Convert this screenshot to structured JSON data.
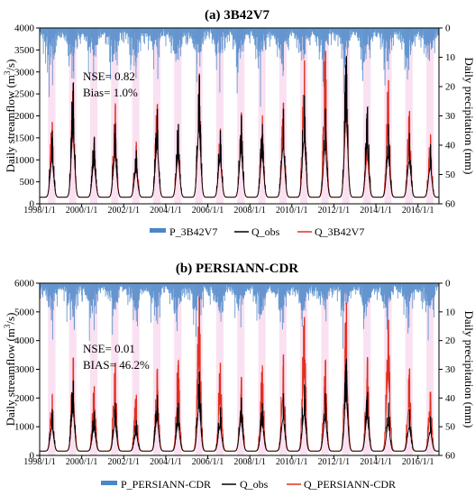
{
  "colors": {
    "precip": "#4a86c8",
    "q_obs": "#000000",
    "q_sim": "#e0301e",
    "band": "#f5c8e6"
  },
  "chart_data": [
    {
      "type": "line",
      "title": "(a) 3B42V7",
      "ylabel_left": "Daily streamflow (m³/s)",
      "ylabel_left_text": "Daily streamflow (m",
      "ylabel_left_sup": "3",
      "ylabel_left_tail": "/s)",
      "ylabel_right": "Daily precipitation (mm)",
      "ylim_left": [
        0,
        4000
      ],
      "yticks_left": [
        "0",
        "500",
        "1000",
        "1500",
        "2000",
        "2500",
        "3000",
        "3500",
        "4000"
      ],
      "ylim_right": [
        0,
        60
      ],
      "yticks_right": [
        "0",
        "10",
        "20",
        "30",
        "40",
        "50",
        "60"
      ],
      "xticks": [
        "1998/1/1",
        "2000/1/1",
        "2002/1/1",
        "2004/1/1",
        "2006/1/1",
        "2008/1/1",
        "2010/1/1",
        "2012/1/1",
        "2014/1/1",
        "2016/1/1"
      ],
      "xrange_years": [
        1998.0,
        2017.0
      ],
      "annotation_line1": "NSE= 0.82",
      "annotation_line2": "Bias= 1.0%",
      "legend": [
        "P_3B42V7",
        "Q_obs",
        "Q_3B42V7"
      ],
      "legend_location": "bottom",
      "baseflow": 150,
      "annual_peaks": [
        {
          "year": 1998,
          "obs": 1650,
          "sim": 1850
        },
        {
          "year": 1999,
          "obs": 2750,
          "sim": 2600
        },
        {
          "year": 2000,
          "obs": 1500,
          "sim": 1500
        },
        {
          "year": 2001,
          "obs": 1800,
          "sim": 2250
        },
        {
          "year": 2002,
          "obs": 1200,
          "sim": 1400
        },
        {
          "year": 2003,
          "obs": 2150,
          "sim": 2250
        },
        {
          "year": 2004,
          "obs": 1800,
          "sim": 1700
        },
        {
          "year": 2005,
          "obs": 2900,
          "sim": 2950
        },
        {
          "year": 2006,
          "obs": 1650,
          "sim": 1700
        },
        {
          "year": 2007,
          "obs": 2000,
          "sim": 2050
        },
        {
          "year": 2008,
          "obs": 1800,
          "sim": 2000
        },
        {
          "year": 2009,
          "obs": 2150,
          "sim": 2300
        },
        {
          "year": 2010,
          "obs": 2450,
          "sim": 3250
        },
        {
          "year": 2011,
          "obs": 2150,
          "sim": 3450
        },
        {
          "year": 2012,
          "obs": 3350,
          "sim": 3300
        },
        {
          "year": 2013,
          "obs": 2200,
          "sim": 1700
        },
        {
          "year": 2014,
          "obs": 1800,
          "sim": 2800
        },
        {
          "year": 2015,
          "obs": 1600,
          "sim": 2100
        },
        {
          "year": 2016,
          "obs": 1350,
          "sim": 1550
        }
      ]
    },
    {
      "type": "line",
      "title": "(b) PERSIANN-CDR",
      "ylabel_left": "Daily streamflow (m³/s)",
      "ylabel_left_text": "Daily streamflow (m",
      "ylabel_left_sup": "3",
      "ylabel_left_tail": "/s)",
      "ylabel_right": "Daily precipitation (mm)",
      "ylim_left": [
        0,
        6000
      ],
      "yticks_left": [
        "0",
        "1000",
        "2000",
        "3000",
        "4000",
        "5000",
        "6000"
      ],
      "ylim_right": [
        0,
        60
      ],
      "yticks_right": [
        "0",
        "10",
        "20",
        "30",
        "40",
        "50",
        "60"
      ],
      "xticks": [
        "1998/1/1",
        "2000/1/1",
        "2002/1/1",
        "2004/1/1",
        "2006/1/1",
        "2008/1/1",
        "2010/1/1",
        "2012/1/1",
        "2014/1/1",
        "2016/1/1"
      ],
      "xrange_years": [
        1998.0,
        2017.0
      ],
      "annotation_line1": "NSE= 0.01",
      "annotation_line2": "BIAS= 46.2%",
      "legend": [
        "P_PERSIANN-CDR",
        "Q_obs",
        "Q_PERSIANN-CDR"
      ],
      "legend_location": "bottom",
      "baseflow": 150,
      "annual_peaks": [
        {
          "year": 1998,
          "obs": 1600,
          "sim": 2100
        },
        {
          "year": 1999,
          "obs": 2600,
          "sim": 3400
        },
        {
          "year": 2000,
          "obs": 1500,
          "sim": 2400
        },
        {
          "year": 2001,
          "obs": 1800,
          "sim": 3200
        },
        {
          "year": 2002,
          "obs": 1200,
          "sim": 2100
        },
        {
          "year": 2003,
          "obs": 2100,
          "sim": 3000
        },
        {
          "year": 2004,
          "obs": 1800,
          "sim": 3300
        },
        {
          "year": 2005,
          "obs": 2900,
          "sim": 5500
        },
        {
          "year": 2006,
          "obs": 1650,
          "sim": 3200
        },
        {
          "year": 2007,
          "obs": 2000,
          "sim": 2700
        },
        {
          "year": 2008,
          "obs": 1800,
          "sim": 3100
        },
        {
          "year": 2009,
          "obs": 2150,
          "sim": 3500
        },
        {
          "year": 2010,
          "obs": 2450,
          "sim": 4800
        },
        {
          "year": 2011,
          "obs": 2150,
          "sim": 3300
        },
        {
          "year": 2012,
          "obs": 3350,
          "sim": 5300
        },
        {
          "year": 2013,
          "obs": 2200,
          "sim": 3400
        },
        {
          "year": 2014,
          "obs": 1800,
          "sim": 4700
        },
        {
          "year": 2015,
          "obs": 1600,
          "sim": 3000
        },
        {
          "year": 2016,
          "obs": 1350,
          "sim": 2200
        }
      ]
    }
  ]
}
